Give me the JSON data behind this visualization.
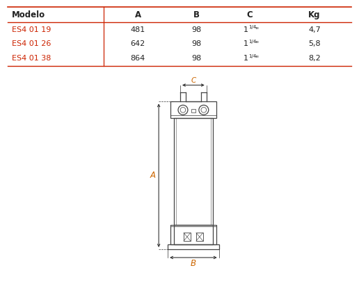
{
  "table_headers": [
    "Modelo",
    "A",
    "B",
    "C",
    "Kg"
  ],
  "table_rows": [
    [
      "ES4 01 19",
      "481",
      "98",
      "1 ¼\"",
      "4,7"
    ],
    [
      "ES4 01 26",
      "642",
      "98",
      "1 ¼\"",
      "5,8"
    ],
    [
      "ES4 01 38",
      "864",
      "98",
      "1 ¼\"",
      "8,2"
    ]
  ],
  "header_bold_color": "#222222",
  "modelo_color": "#cc2200",
  "text_color": "#222222",
  "red_line_color": "#cc2200",
  "draw_color": "#444444",
  "dim_color": "#cc6600",
  "bg_color": "#ffffff",
  "fig_width": 5.16,
  "fig_height": 4.22,
  "dpi": 100
}
